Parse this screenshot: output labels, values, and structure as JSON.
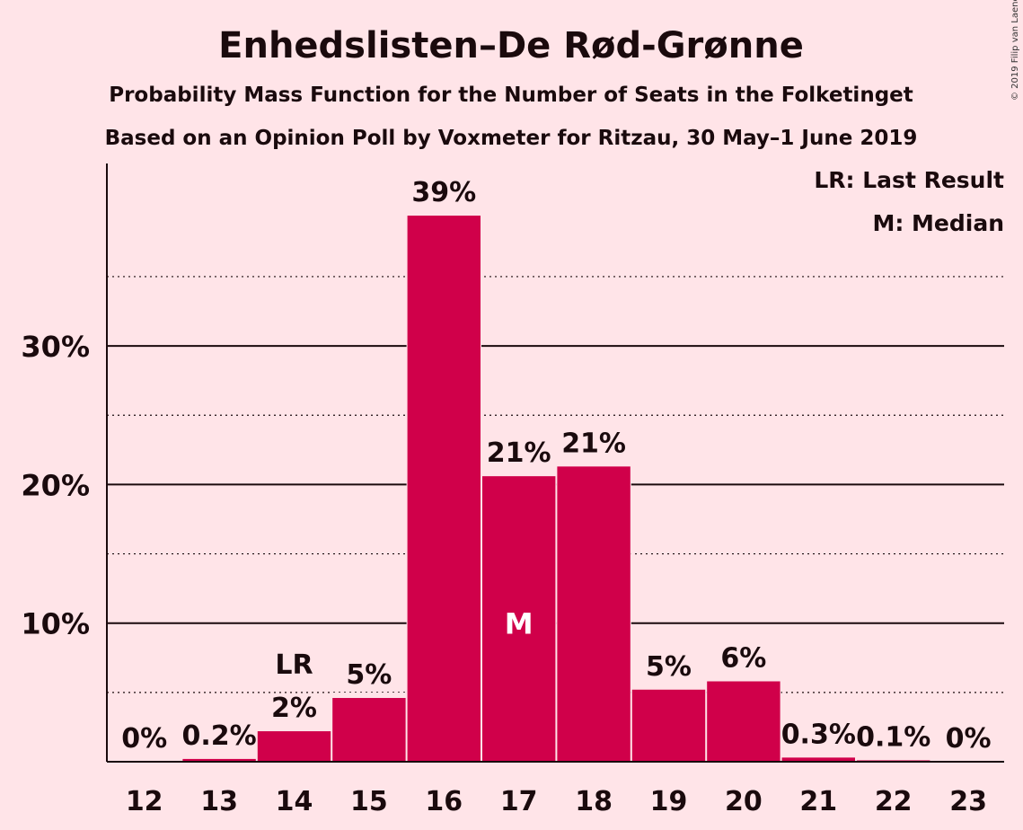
{
  "title": "Enhedslisten–De Rød-Grønne",
  "subtitle1": "Probability Mass Function for the Number of Seats in the Folketinget",
  "subtitle2": "Based on an Opinion Poll by Voxmeter for Ritzau, 30 May–1 June 2019",
  "legend": {
    "lr": "LR: Last Result",
    "m": "M: Median"
  },
  "copyright": "© 2019 Filip van Laenen",
  "colors": {
    "background": "#FFE4E8",
    "bar": "#D0004A",
    "text": "#1a0a0d"
  },
  "chart_data": {
    "type": "bar",
    "categories": [
      "12",
      "13",
      "14",
      "15",
      "16",
      "17",
      "18",
      "19",
      "20",
      "21",
      "22",
      "23"
    ],
    "values": [
      0,
      0.2,
      2.2,
      4.6,
      39.4,
      20.6,
      21.3,
      5.2,
      5.8,
      0.3,
      0.1,
      0
    ],
    "labels": [
      "0%",
      "0.2%",
      "2%",
      "5%",
      "39%",
      "21%",
      "21%",
      "5%",
      "6%",
      "0.3%",
      "0.1%",
      "0%"
    ],
    "yticks": [
      "10%",
      "20%",
      "30%"
    ],
    "ytick_values": [
      10,
      20,
      30
    ],
    "dotted_gridlines": [
      5,
      15,
      25,
      35
    ],
    "ylim": [
      0,
      43
    ],
    "last_result": {
      "category": "14",
      "label": "LR"
    },
    "median": {
      "category": "17",
      "label": "M"
    },
    "legend_position": "top-right"
  }
}
